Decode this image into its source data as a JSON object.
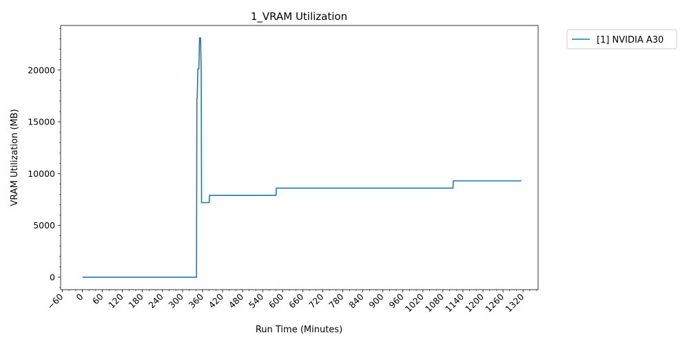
{
  "chart_data": {
    "type": "line",
    "title": "1_VRAM Utilization",
    "xlabel": "Run Time (Minutes)",
    "ylabel": "VRAM Utilization (MB)",
    "xlim": [
      -65,
      1365
    ],
    "ylim": [
      -1200,
      24300
    ],
    "x_ticks": [
      -60,
      0,
      60,
      120,
      180,
      240,
      300,
      360,
      420,
      480,
      540,
      600,
      660,
      720,
      780,
      840,
      900,
      960,
      1020,
      1080,
      1140,
      1200,
      1260,
      1320
    ],
    "x_tick_labels": [
      "−60",
      "0",
      "60",
      "120",
      "180",
      "240",
      "300",
      "360",
      "420",
      "480",
      "540",
      "600",
      "660",
      "720",
      "780",
      "840",
      "900",
      "960",
      "1020",
      "1080",
      "1140",
      "1200",
      "1260",
      "1320"
    ],
    "y_ticks": [
      0,
      5000,
      10000,
      15000,
      20000
    ],
    "y_tick_labels": [
      "0",
      "5000",
      "10000",
      "15000",
      "20000"
    ],
    "grid": false,
    "legend_position": "outside-top-right",
    "series": [
      {
        "name": "[1] NVIDIA A30",
        "color": "#1f77b4",
        "x": [
          0,
          342,
          343,
          344,
          346,
          349,
          351,
          354,
          356,
          357,
          358,
          380,
          381,
          580,
          581,
          1110,
          1111,
          1315
        ],
        "y": [
          0,
          0,
          17200,
          17300,
          20100,
          20100,
          23100,
          23100,
          20000,
          7200,
          7200,
          7200,
          7900,
          7900,
          8600,
          8600,
          9300,
          9300
        ]
      }
    ]
  }
}
